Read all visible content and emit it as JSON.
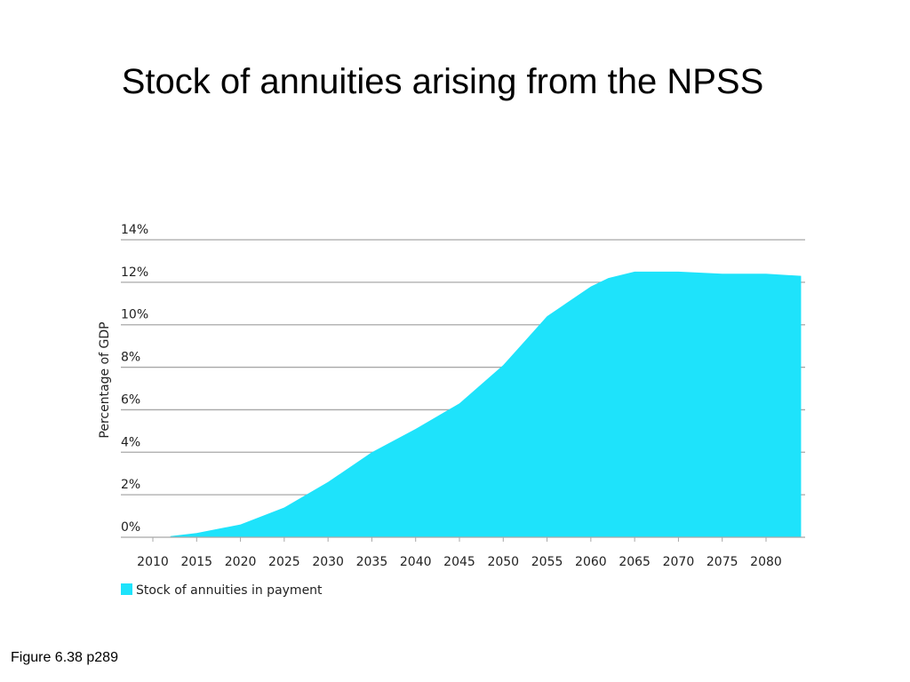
{
  "slide": {
    "title": "Stock of annuities arising from the NPSS",
    "caption": "Figure 6.38 p289"
  },
  "chart_data": {
    "type": "area",
    "title": "",
    "xlabel": "",
    "ylabel": "Percentage of GDP",
    "xlim": [
      2010,
      2084
    ],
    "ylim": [
      0,
      14
    ],
    "x_ticks": [
      2010,
      2015,
      2020,
      2025,
      2030,
      2035,
      2040,
      2045,
      2050,
      2055,
      2060,
      2065,
      2070,
      2075,
      2080
    ],
    "y_ticks": [
      "0%",
      "2%",
      "4%",
      "6%",
      "8%",
      "10%",
      "12%",
      "14%"
    ],
    "y_tick_values": [
      0,
      2,
      4,
      6,
      8,
      10,
      12,
      14
    ],
    "grid": true,
    "legend_position": "bottom-left",
    "series": [
      {
        "name": "Stock of annuities in payment",
        "color": "#1ee3fb",
        "x": [
          2012,
          2015,
          2020,
          2025,
          2030,
          2035,
          2040,
          2045,
          2050,
          2055,
          2060,
          2062,
          2065,
          2070,
          2075,
          2080,
          2084
        ],
        "y": [
          0.05,
          0.2,
          0.6,
          1.4,
          2.6,
          4.0,
          5.1,
          6.3,
          8.1,
          10.4,
          11.8,
          12.2,
          12.5,
          12.5,
          12.4,
          12.4,
          12.3
        ]
      }
    ]
  }
}
